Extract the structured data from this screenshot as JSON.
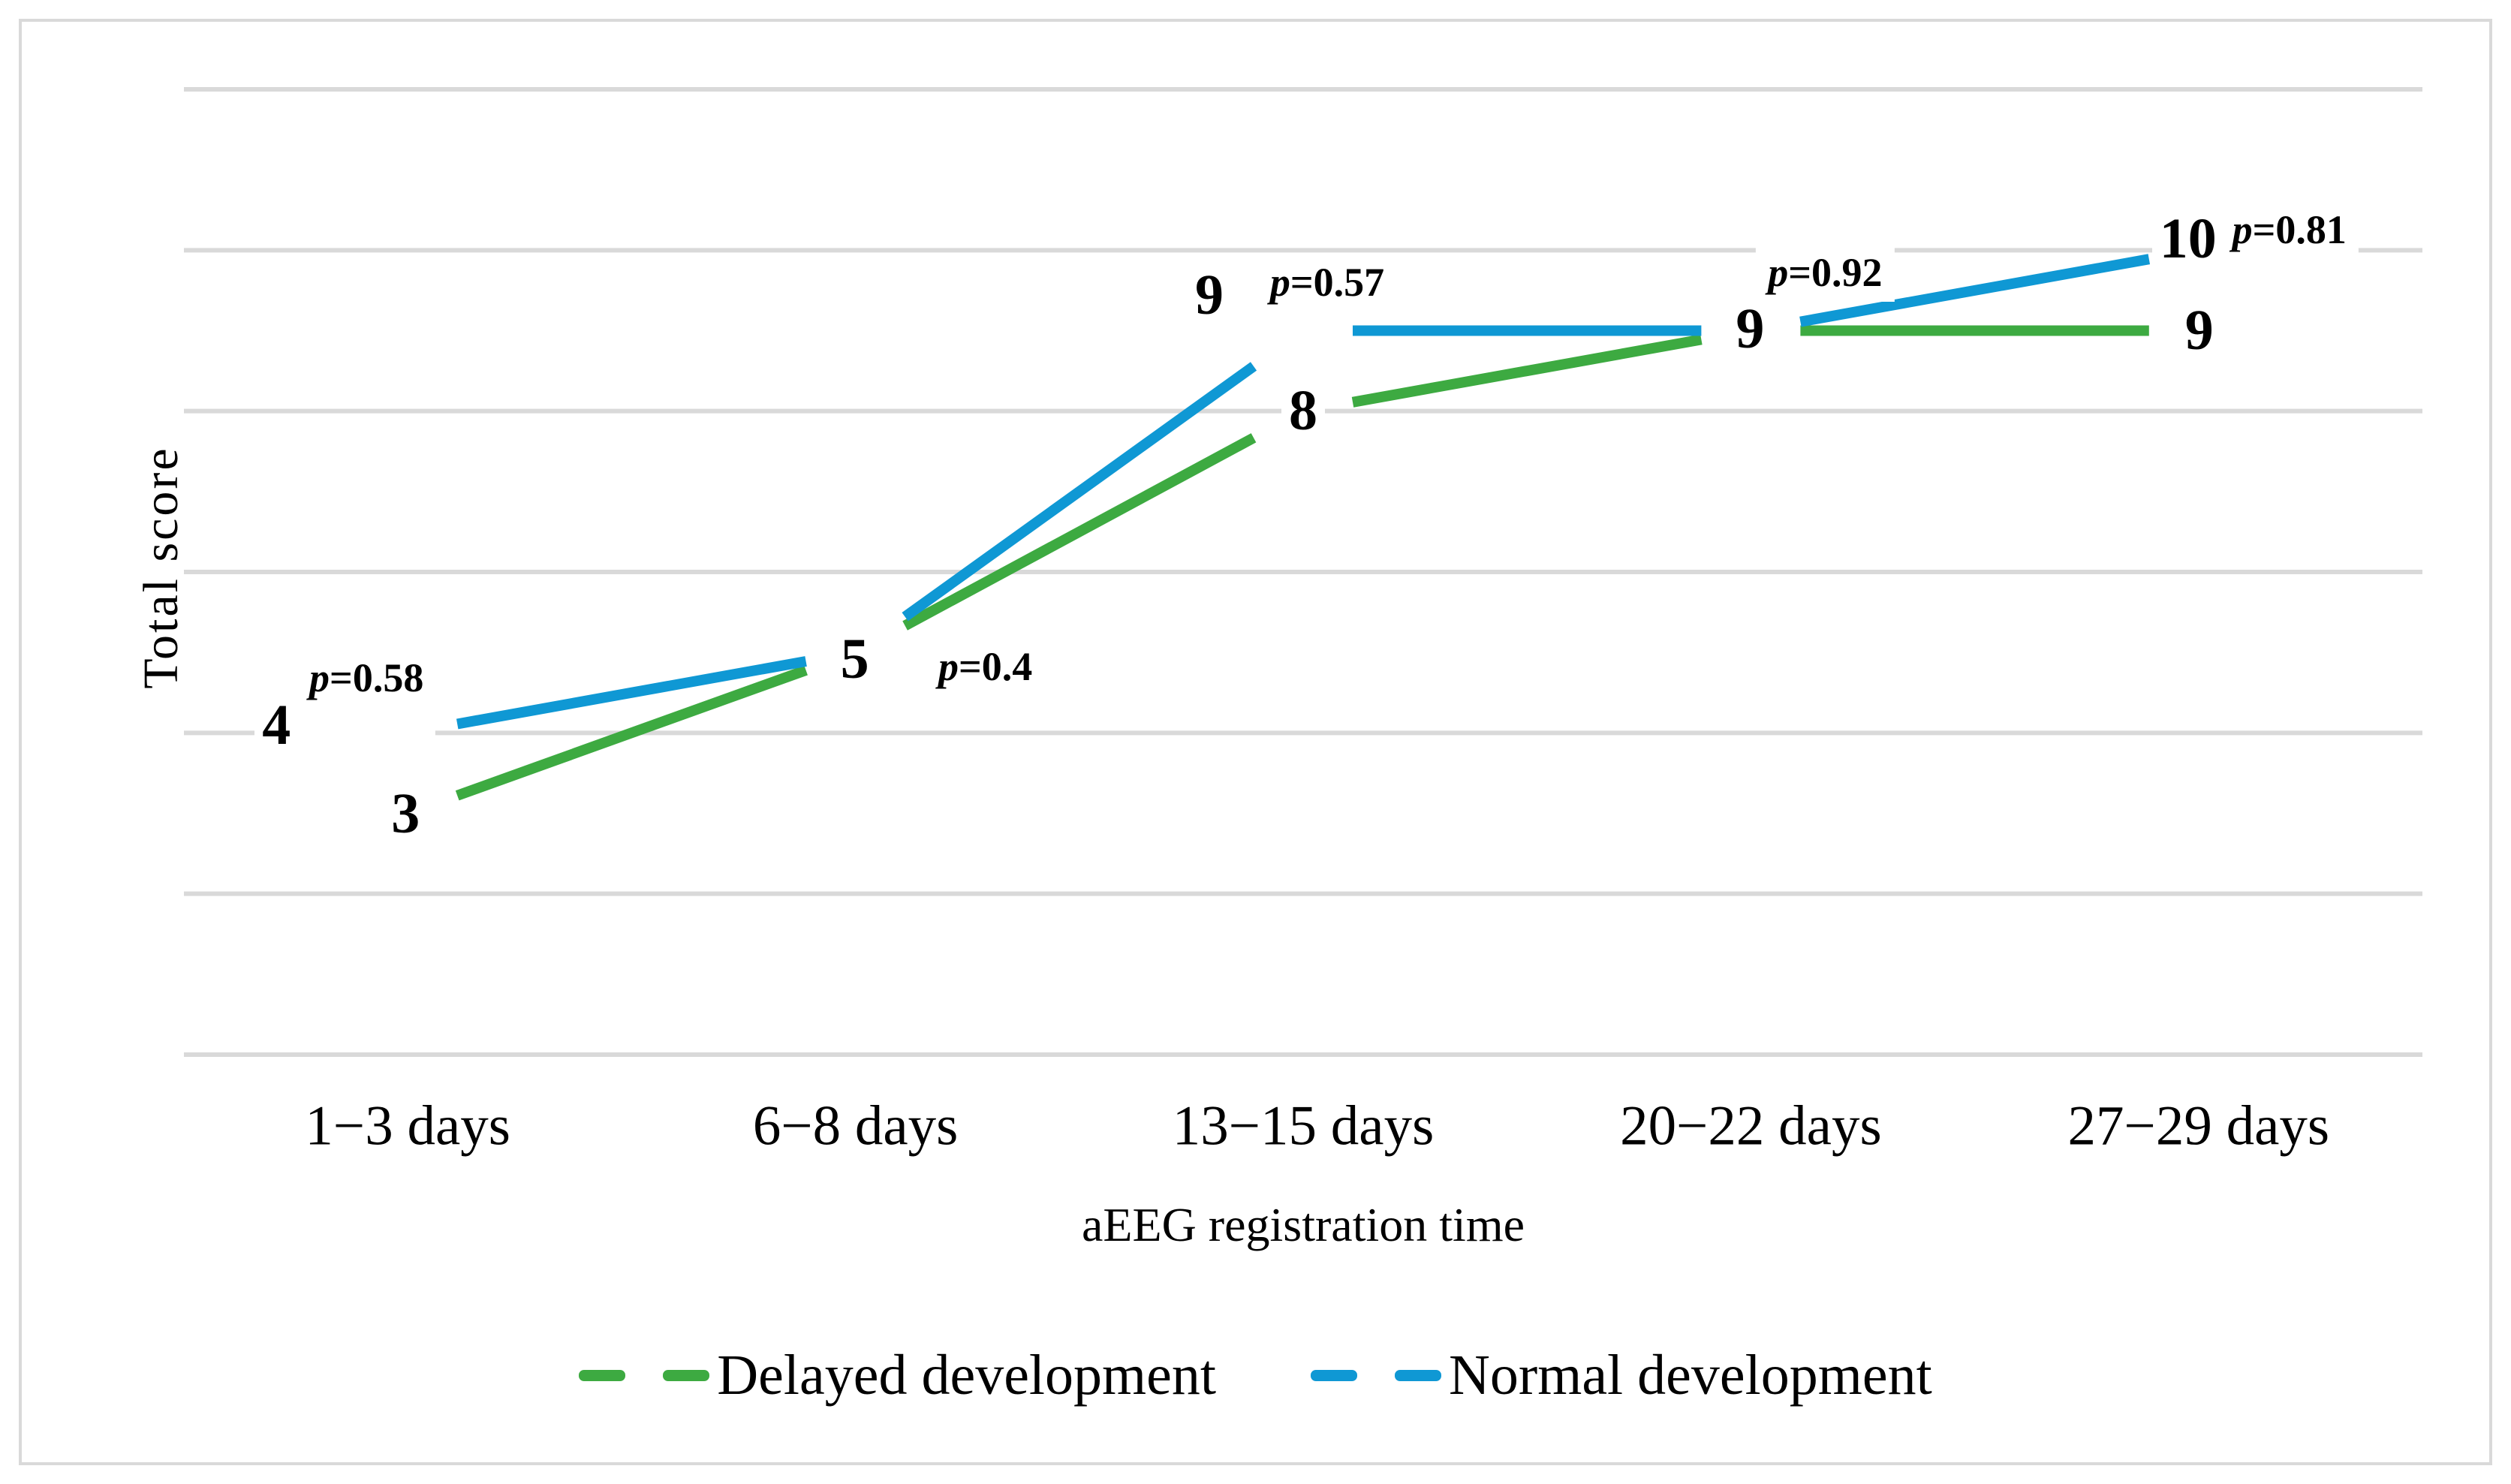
{
  "figure": {
    "background_color": "#ffffff",
    "border_color": "#d9d9d9"
  },
  "chart_data": {
    "type": "line",
    "title": "",
    "categories": [
      "1−3 days",
      "6−8 days",
      "13−15 days",
      "20−22 days",
      "27−29 days"
    ],
    "xlabel": "aEEG registration time",
    "ylabel": "Total score",
    "ylim": [
      0,
      12
    ],
    "gridline_step": 2,
    "grid": true,
    "gridline_color": "#d9d9d9",
    "legend_position": "bottom",
    "series": [
      {
        "name": "Delayed development",
        "color": "#3daa41",
        "values": [
          3,
          5,
          8,
          9,
          9
        ]
      },
      {
        "name": "Normal development",
        "color": "#0f98d4",
        "values": [
          4,
          5,
          9,
          9,
          10
        ]
      }
    ],
    "p_value_labels": [
      "p=0.58",
      "p=0.4",
      "p=0.57",
      "p=0.92",
      "p=0.81"
    ]
  },
  "legend": {
    "items": [
      {
        "label": "Delayed development",
        "color": "#3daa41"
      },
      {
        "label": "Normal development",
        "color": "#0f98d4"
      }
    ]
  }
}
